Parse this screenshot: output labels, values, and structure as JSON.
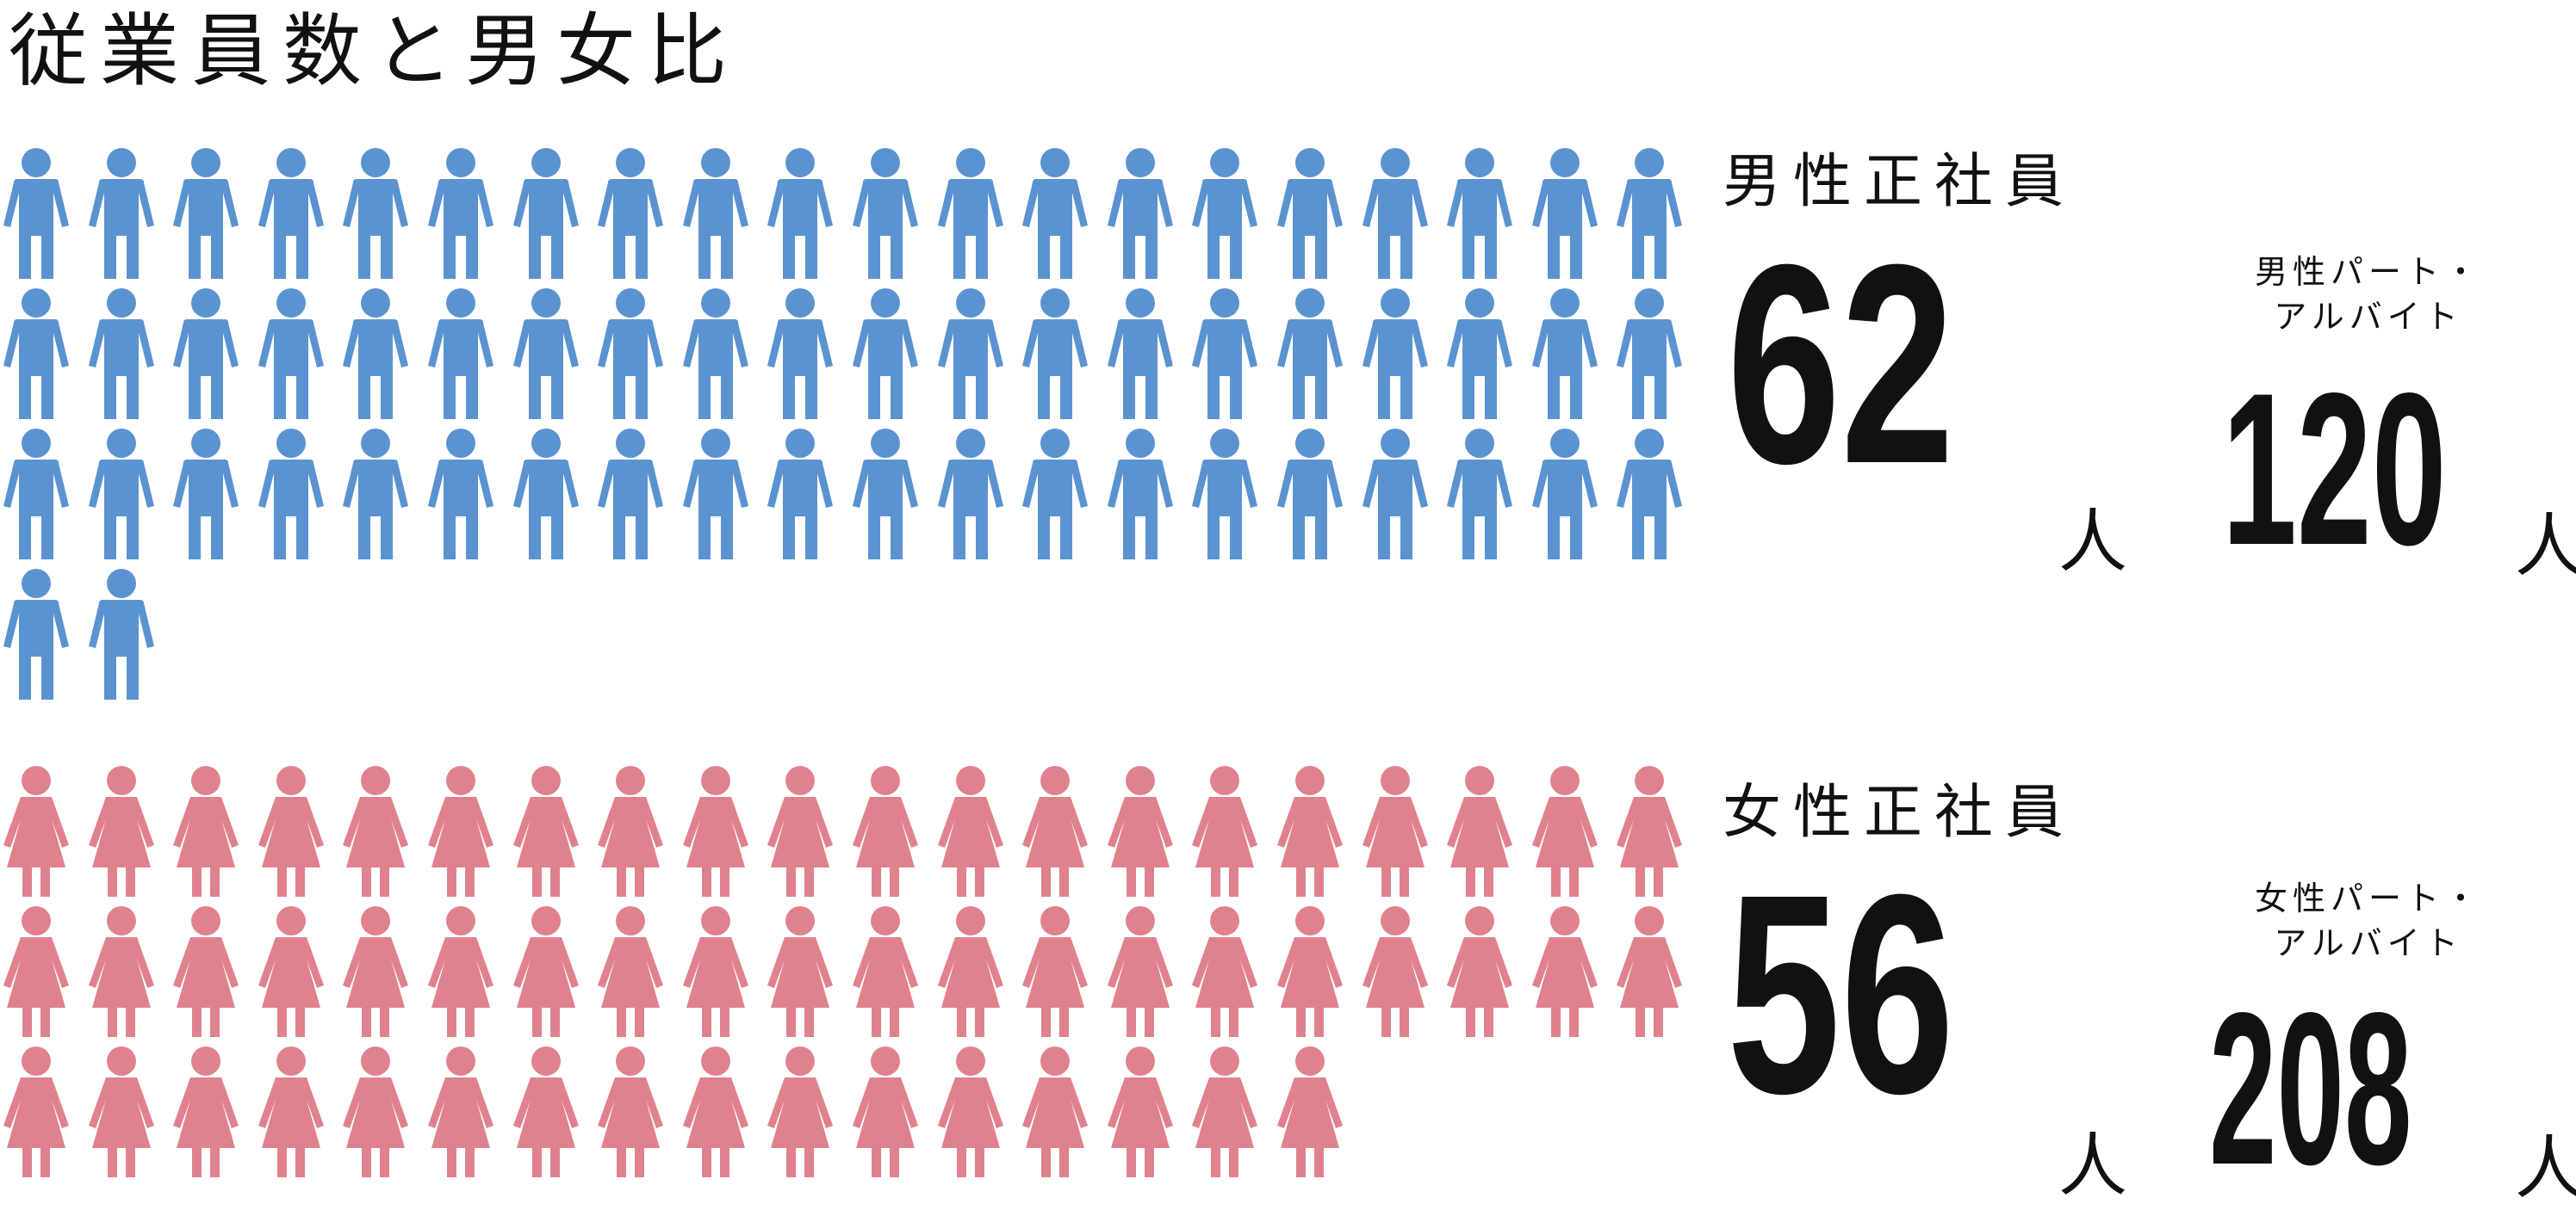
{
  "title": "従業員数と男女比",
  "colors": {
    "male": "#5b93d0",
    "female": "#e0828e",
    "text": "#111111"
  },
  "male": {
    "icon": "male-person-icon",
    "fulltime_label": "男性正社員",
    "fulltime_count": "62",
    "fulltime_unit": "人",
    "parttime_label_line1": "男性パート・",
    "parttime_label_line2": "アルバイト",
    "parttime_count": "120",
    "parttime_unit": "人"
  },
  "female": {
    "icon": "female-person-icon",
    "fulltime_label": "女性正社員",
    "fulltime_count": "56",
    "fulltime_unit": "人",
    "parttime_label_line1": "女性パート・",
    "parttime_label_line2": "アルバイト",
    "parttime_count": "208",
    "parttime_unit": "人"
  }
}
